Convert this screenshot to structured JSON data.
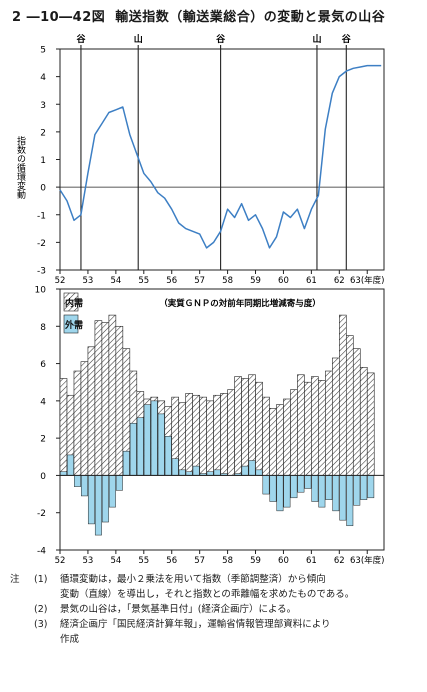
{
  "title": {
    "number": "2 ―10―42図",
    "text": "輸送指数（輸送業総合）の変動と景気の山谷"
  },
  "colors": {
    "line": "#3d7fc4",
    "bar": "#9fd6ec",
    "hatch": "#333333",
    "axis": "#222222"
  },
  "chart_data": [
    {
      "type": "line",
      "ylabel": "指数の循環変動",
      "ylim": [
        -3,
        5
      ],
      "yticks": [
        "5",
        "4",
        "3",
        "2",
        "1",
        "0",
        "-1",
        "-2",
        "-3"
      ],
      "x_ticks": [
        "52",
        "53",
        "54",
        "55",
        "56",
        "57",
        "58",
        "59",
        "60",
        "61",
        "62",
        "63(年度)"
      ],
      "turning_points": [
        {
          "label": "谷",
          "x": 52.75
        },
        {
          "label": "山",
          "x": 54.8
        },
        {
          "label": "谷",
          "x": 57.75
        },
        {
          "label": "山",
          "x": 61.2
        },
        {
          "label": "谷",
          "x": 62.25
        }
      ],
      "x": [
        52.0,
        52.25,
        52.5,
        52.75,
        53.0,
        53.25,
        53.5,
        53.75,
        54.0,
        54.25,
        54.5,
        54.75,
        55.0,
        55.25,
        55.5,
        55.75,
        56.0,
        56.25,
        56.5,
        56.75,
        57.0,
        57.25,
        57.5,
        57.75,
        58.0,
        58.25,
        58.5,
        58.75,
        59.0,
        59.25,
        59.5,
        59.75,
        60.0,
        60.25,
        60.5,
        60.75,
        61.0,
        61.25,
        61.5,
        61.75,
        62.0,
        62.25,
        62.5,
        62.75,
        63.0,
        63.25,
        63.5
      ],
      "values": [
        -0.1,
        -0.5,
        -1.2,
        -1.0,
        0.5,
        1.9,
        2.3,
        2.7,
        2.8,
        2.9,
        1.9,
        1.2,
        0.5,
        0.2,
        -0.2,
        -0.4,
        -0.8,
        -1.3,
        -1.5,
        -1.6,
        -1.7,
        -2.2,
        -2.0,
        -1.6,
        -0.8,
        -1.1,
        -0.6,
        -1.2,
        -1.0,
        -1.5,
        -2.2,
        -1.8,
        -0.9,
        -1.1,
        -0.8,
        -1.5,
        -0.8,
        -0.3,
        2.1,
        3.4,
        4.0,
        4.2,
        4.3,
        4.35,
        4.4,
        4.4,
        4.4
      ]
    },
    {
      "type": "bar",
      "subtitle": "（実質ＧＮＰの対前年同期比増減寄与度）",
      "legend": [
        "内需",
        "外需"
      ],
      "ylim": [
        -4,
        10
      ],
      "yticks": [
        "10",
        "8",
        "6",
        "4",
        "2",
        "0",
        "-2",
        "-4"
      ],
      "x_ticks": [
        "52",
        "53",
        "54",
        "55",
        "56",
        "57",
        "58",
        "59",
        "60",
        "61",
        "62",
        "63(年度)"
      ],
      "x_start": 52,
      "quarters_per_year": 4,
      "series": [
        {
          "name": "内需",
          "values": [
            5.2,
            4.3,
            5.6,
            6.1,
            6.9,
            8.3,
            8.2,
            8.6,
            8.0,
            6.8,
            5.6,
            4.5,
            4.1,
            4.2,
            4.0,
            3.7,
            4.2,
            3.9,
            4.4,
            4.3,
            4.2,
            4.0,
            4.3,
            4.4,
            4.6,
            5.3,
            5.2,
            5.4,
            5.0,
            4.2,
            3.6,
            3.8,
            4.1,
            4.6,
            5.4,
            5.0,
            5.3,
            5.1,
            5.6,
            6.3,
            8.6,
            7.5,
            6.8,
            5.8,
            5.5
          ]
        },
        {
          "name": "外需",
          "values": [
            0.2,
            1.1,
            -0.6,
            -1.1,
            -2.6,
            -3.2,
            -2.5,
            -1.7,
            -0.8,
            1.3,
            2.8,
            3.1,
            3.8,
            4.0,
            3.3,
            2.1,
            0.9,
            0.3,
            0.2,
            0.5,
            0.1,
            0.2,
            0.3,
            0.1,
            0.0,
            0.1,
            0.5,
            0.8,
            0.3,
            -1.0,
            -1.4,
            -1.9,
            -1.7,
            -1.2,
            -0.9,
            -0.7,
            -1.4,
            -1.7,
            -1.3,
            -1.9,
            -2.4,
            -2.7,
            -1.6,
            -1.3,
            -1.2
          ]
        }
      ]
    }
  ],
  "notes": [
    {
      "mark": "注",
      "no": "(1)",
      "text": "循環変動は，最小２乗法を用いて指数（季節調整済）から傾向"
    },
    {
      "mark": "",
      "no": "",
      "text": "変動（直線）を導出し，それと指数との乖離幅を求めたものである。",
      "sub": true
    },
    {
      "mark": "",
      "no": "(2)",
      "text": "景気の山谷は，「景気基準日付」(経済企画庁）による。"
    },
    {
      "mark": "",
      "no": "(3)",
      "text": "経済企画庁「国民経済計算年報」，運輸省情報管理部資料により"
    },
    {
      "mark": "",
      "no": "",
      "text": "作成",
      "sub": true
    }
  ]
}
